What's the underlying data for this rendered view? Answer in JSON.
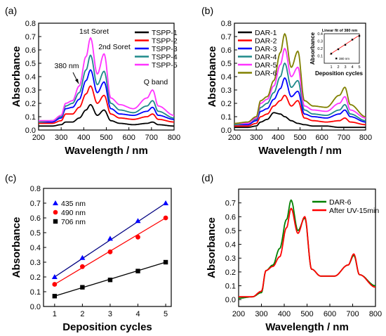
{
  "figure": {
    "panels": [
      {
        "label": "(a)",
        "xlabel": "Wavelength / nm",
        "ylabel": "Absorbance",
        "annotations": [
          "1st Soret",
          "2nd Soret",
          "380 nm",
          "Q band"
        ]
      },
      {
        "label": "(b)",
        "xlabel": "Wavelength / nm",
        "ylabel": "Absorbance",
        "inset": {
          "title": "Linear fit of 380 nm",
          "xlabel": "Deposition cycles",
          "ylabel": "Absorbance",
          "legend": "380 nm"
        }
      },
      {
        "label": "(c)",
        "xlabel": "Deposition cycles",
        "ylabel": "Absorbance"
      },
      {
        "label": "(d)",
        "xlabel": "Wavelength / nm",
        "ylabel": "Absorbance"
      }
    ]
  },
  "chart_data": [
    {
      "type": "line",
      "title": "",
      "xlabel": "Wavelength / nm",
      "ylabel": "Absorbance",
      "xlim": [
        200,
        800
      ],
      "ylim": [
        0,
        0.8
      ],
      "xticks": [
        200,
        300,
        400,
        500,
        600,
        700,
        800
      ],
      "yticks": [
        0.0,
        0.1,
        0.2,
        0.3,
        0.4,
        0.5,
        0.6,
        0.7,
        0.8
      ],
      "legend_position": "top-right",
      "x": [
        200,
        260,
        300,
        320,
        350,
        380,
        410,
        430,
        460,
        490,
        520,
        560,
        620,
        680,
        705,
        730,
        800
      ],
      "series": [
        {
          "name": "TSPP-1",
          "color": "#000000",
          "values": [
            0.03,
            0.03,
            0.04,
            0.06,
            0.06,
            0.09,
            0.15,
            0.19,
            0.11,
            0.15,
            0.07,
            0.05,
            0.04,
            0.05,
            0.06,
            0.04,
            0.03
          ]
        },
        {
          "name": "TSPP-2",
          "color": "#ff0000",
          "values": [
            0.05,
            0.05,
            0.07,
            0.12,
            0.12,
            0.17,
            0.27,
            0.33,
            0.2,
            0.26,
            0.12,
            0.09,
            0.08,
            0.1,
            0.12,
            0.08,
            0.06
          ]
        },
        {
          "name": "TSPP-3",
          "color": "#0000ff",
          "values": [
            0.06,
            0.06,
            0.09,
            0.16,
            0.17,
            0.23,
            0.37,
            0.45,
            0.28,
            0.36,
            0.16,
            0.12,
            0.11,
            0.14,
            0.17,
            0.11,
            0.08
          ]
        },
        {
          "name": "TSPP-4",
          "color": "#1f8a8a",
          "values": [
            0.06,
            0.07,
            0.1,
            0.18,
            0.2,
            0.28,
            0.45,
            0.56,
            0.34,
            0.44,
            0.2,
            0.15,
            0.13,
            0.18,
            0.22,
            0.14,
            0.09
          ]
        },
        {
          "name": "TSPP-5",
          "color": "#ff33ff",
          "values": [
            0.07,
            0.07,
            0.11,
            0.2,
            0.22,
            0.33,
            0.55,
            0.69,
            0.42,
            0.57,
            0.24,
            0.19,
            0.16,
            0.24,
            0.3,
            0.18,
            0.11
          ]
        }
      ]
    },
    {
      "type": "line",
      "title": "",
      "xlabel": "Wavelength / nm",
      "ylabel": "Absorbance",
      "xlim": [
        200,
        800
      ],
      "ylim": [
        0,
        0.8
      ],
      "xticks": [
        200,
        300,
        400,
        500,
        600,
        700,
        800
      ],
      "yticks": [
        0.0,
        0.1,
        0.2,
        0.3,
        0.4,
        0.5,
        0.6,
        0.7,
        0.8
      ],
      "legend_position": "top-left",
      "x": [
        200,
        260,
        300,
        320,
        350,
        380,
        410,
        430,
        460,
        490,
        520,
        560,
        620,
        680,
        705,
        730,
        800
      ],
      "series": [
        {
          "name": "DAR-1",
          "color": "#000000",
          "values": [
            0.02,
            0.02,
            0.03,
            0.06,
            0.08,
            0.13,
            0.12,
            0.1,
            0.07,
            0.05,
            0.04,
            0.03,
            0.03,
            0.02,
            0.02,
            0.02,
            0.02
          ]
        },
        {
          "name": "DAR-2",
          "color": "#ff0000",
          "values": [
            0.03,
            0.03,
            0.05,
            0.1,
            0.12,
            0.18,
            0.22,
            0.26,
            0.18,
            0.22,
            0.09,
            0.07,
            0.06,
            0.07,
            0.09,
            0.06,
            0.04
          ]
        },
        {
          "name": "DAR-3",
          "color": "#0000ff",
          "values": [
            0.04,
            0.04,
            0.07,
            0.14,
            0.16,
            0.23,
            0.31,
            0.39,
            0.25,
            0.29,
            0.12,
            0.1,
            0.09,
            0.12,
            0.15,
            0.1,
            0.06
          ]
        },
        {
          "name": "DAR-4",
          "color": "#1f8a8a",
          "values": [
            0.04,
            0.05,
            0.08,
            0.17,
            0.2,
            0.28,
            0.4,
            0.5,
            0.32,
            0.37,
            0.15,
            0.12,
            0.11,
            0.15,
            0.19,
            0.12,
            0.07
          ]
        },
        {
          "name": "DAR-5",
          "color": "#ff33ff",
          "values": [
            0.05,
            0.05,
            0.09,
            0.2,
            0.23,
            0.33,
            0.49,
            0.61,
            0.4,
            0.47,
            0.18,
            0.15,
            0.14,
            0.2,
            0.25,
            0.15,
            0.09
          ]
        },
        {
          "name": "DAR-6",
          "color": "#808000",
          "values": [
            0.05,
            0.06,
            0.1,
            0.22,
            0.25,
            0.37,
            0.58,
            0.72,
            0.47,
            0.59,
            0.22,
            0.18,
            0.17,
            0.26,
            0.32,
            0.19,
            0.1
          ]
        }
      ],
      "inset": {
        "type": "scatter",
        "title": "Linear fit of 380 nm",
        "xlabel": "Deposition cycles",
        "ylabel": "Absorbance",
        "xlim": [
          0,
          5
        ],
        "ylim": [
          0,
          0.4
        ],
        "xticks": [
          1,
          2,
          3,
          4,
          5
        ],
        "yticks": [
          0.1,
          0.2,
          0.3,
          0.4
        ],
        "legend": "380 nm",
        "x": [
          1,
          2,
          3,
          4,
          5
        ],
        "values": [
          0.13,
          0.19,
          0.25,
          0.32,
          0.37
        ]
      }
    },
    {
      "type": "scatter",
      "title": "",
      "xlabel": "Deposition cycles",
      "ylabel": "Absorbance",
      "xlim": [
        0.6,
        5.2
      ],
      "ylim": [
        0,
        0.8
      ],
      "xticks": [
        1,
        2,
        3,
        4,
        5
      ],
      "yticks": [
        0.0,
        0.1,
        0.2,
        0.3,
        0.4,
        0.5,
        0.6,
        0.7,
        0.8
      ],
      "legend_position": "top-left",
      "x": [
        1,
        2,
        3,
        4,
        5
      ],
      "series": [
        {
          "name": "435 nm",
          "color": "#0000ff",
          "marker": "triangle",
          "line_color": "#000080",
          "values": [
            0.2,
            0.33,
            0.46,
            0.58,
            0.7
          ]
        },
        {
          "name": "490 nm",
          "color": "#ff0000",
          "marker": "circle",
          "line_color": "#ff0000",
          "values": [
            0.15,
            0.27,
            0.37,
            0.47,
            0.6
          ]
        },
        {
          "name": "706 nm",
          "color": "#000000",
          "marker": "square",
          "line_color": "#000000",
          "values": [
            0.07,
            0.13,
            0.18,
            0.24,
            0.3
          ]
        }
      ]
    },
    {
      "type": "line",
      "title": "",
      "xlabel": "Wavelength / nm",
      "ylabel": "Absorbance",
      "xlim": [
        200,
        800
      ],
      "ylim": [
        -0.05,
        0.8
      ],
      "xticks": [
        200,
        300,
        400,
        500,
        600,
        700,
        800
      ],
      "yticks": [
        0.0,
        0.1,
        0.2,
        0.3,
        0.4,
        0.5,
        0.6,
        0.7
      ],
      "legend_position": "top-right",
      "x": [
        200,
        260,
        300,
        320,
        350,
        380,
        410,
        430,
        460,
        490,
        520,
        560,
        620,
        680,
        705,
        730,
        800
      ],
      "series": [
        {
          "name": "DAR-6",
          "color": "#008000",
          "values": [
            0.01,
            0.02,
            0.05,
            0.21,
            0.25,
            0.37,
            0.58,
            0.72,
            0.5,
            0.59,
            0.22,
            0.17,
            0.17,
            0.25,
            0.32,
            0.18,
            0.1
          ]
        },
        {
          "name": "After UV-15min",
          "color": "#ff0000",
          "values": [
            0.02,
            0.02,
            0.06,
            0.21,
            0.24,
            0.31,
            0.52,
            0.66,
            0.48,
            0.6,
            0.22,
            0.17,
            0.17,
            0.25,
            0.33,
            0.18,
            0.09
          ]
        }
      ]
    }
  ]
}
